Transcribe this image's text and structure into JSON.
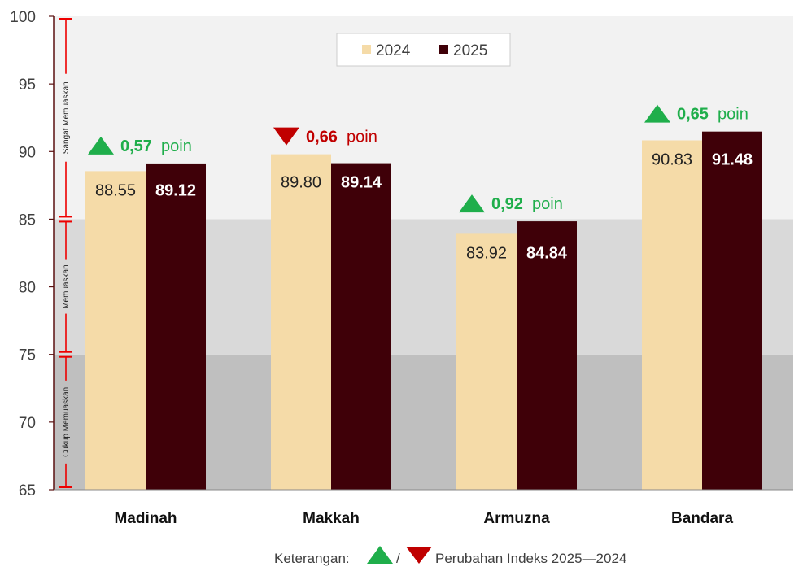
{
  "chart_data": {
    "type": "bar",
    "categories": [
      "Madinah",
      "Makkah",
      "Armuzna",
      "Bandara"
    ],
    "series": [
      {
        "name": "2024",
        "values": [
          88.55,
          89.8,
          83.92,
          90.83
        ],
        "labels": [
          "88.55",
          "89.80",
          "83.92",
          "90.83"
        ],
        "color": "#f5dba8"
      },
      {
        "name": "2025",
        "values": [
          89.12,
          89.14,
          84.84,
          91.48
        ],
        "labels": [
          "89.12",
          "89.14",
          "84.84",
          "91.48"
        ],
        "color": "#3f0008"
      }
    ],
    "changes": [
      {
        "direction": "up",
        "value": "0,57",
        "unit": "poin"
      },
      {
        "direction": "down",
        "value": "0,66",
        "unit": "poin"
      },
      {
        "direction": "up",
        "value": "0,92",
        "unit": "poin"
      },
      {
        "direction": "up",
        "value": "0,65",
        "unit": "poin"
      }
    ],
    "ylim": [
      65,
      100
    ],
    "yticks": [
      65,
      70,
      75,
      80,
      85,
      90,
      95,
      100
    ],
    "bands": [
      {
        "label": "Cukup Memuaskan",
        "from": 65,
        "to": 75,
        "color": "#bfbfbf"
      },
      {
        "label": "Memuaskan",
        "from": 75,
        "to": 85,
        "color": "#d9d9d9"
      },
      {
        "label": "Sangat Memuaskan",
        "from": 85,
        "to": 100,
        "color": "#f2f2f2"
      }
    ],
    "legend_position": "top-center",
    "colors": {
      "up": "#1fae4b",
      "down": "#c00000",
      "bracket": "#ee0000",
      "axis": "#5a1010"
    },
    "footnote": {
      "prefix": "Keterangan:",
      "separator": "/",
      "text": "Perubahan Indeks 2025—2024"
    }
  }
}
